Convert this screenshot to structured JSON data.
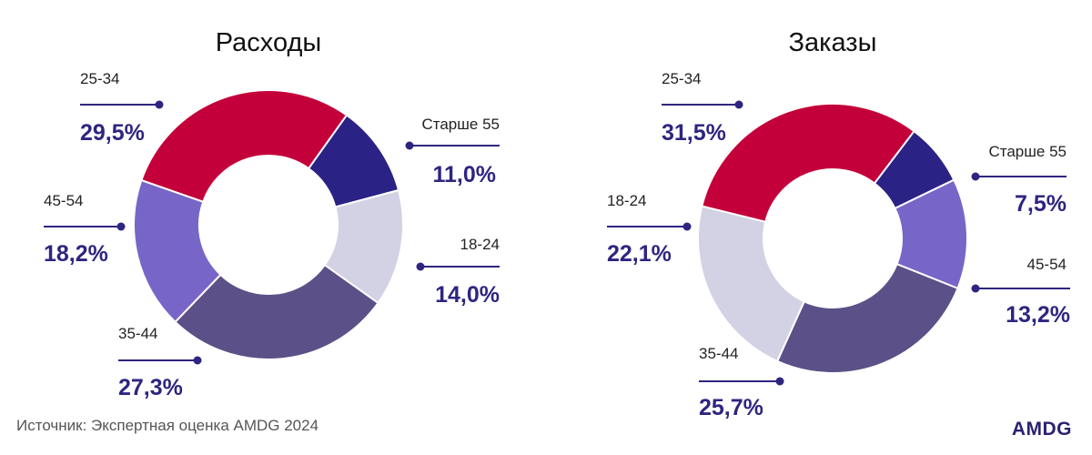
{
  "chart_data": [
    {
      "type": "pie",
      "title": "Расходы",
      "slices": [
        {
          "label": "25-34",
          "value": 29.5,
          "value_label": "29,5%",
          "color": "#c4003a"
        },
        {
          "label": "Старше 55",
          "value": 11.0,
          "value_label": "11,0%",
          "color": "#2b2285"
        },
        {
          "label": "18-24",
          "value": 14.0,
          "value_label": "14,0%",
          "color": "#d3d1e4"
        },
        {
          "label": "35-44",
          "value": 27.3,
          "value_label": "27,3%",
          "color": "#5b5087"
        },
        {
          "label": "45-54",
          "value": 18.2,
          "value_label": "18,2%",
          "color": "#7766c8"
        }
      ]
    },
    {
      "type": "pie",
      "title": "Заказы",
      "slices": [
        {
          "label": "25-34",
          "value": 31.5,
          "value_label": "31,5%",
          "color": "#c4003a"
        },
        {
          "label": "Старше 55",
          "value": 7.5,
          "value_label": "7,5%",
          "color": "#2b2285"
        },
        {
          "label": "45-54",
          "value": 13.2,
          "value_label": "13,2%",
          "color": "#7766c8"
        },
        {
          "label": "35-44",
          "value": 25.7,
          "value_label": "25,7%",
          "color": "#5b5087"
        },
        {
          "label": "18-24",
          "value": 22.1,
          "value_label": "22,1%",
          "color": "#d3d1e4"
        }
      ]
    }
  ],
  "colors": {
    "leader": "#2e2580",
    "value_text": "#2e2580"
  },
  "footer": {
    "source": "Источник: Экспертная оценка AMDG 2024",
    "logo": "AMDG"
  }
}
